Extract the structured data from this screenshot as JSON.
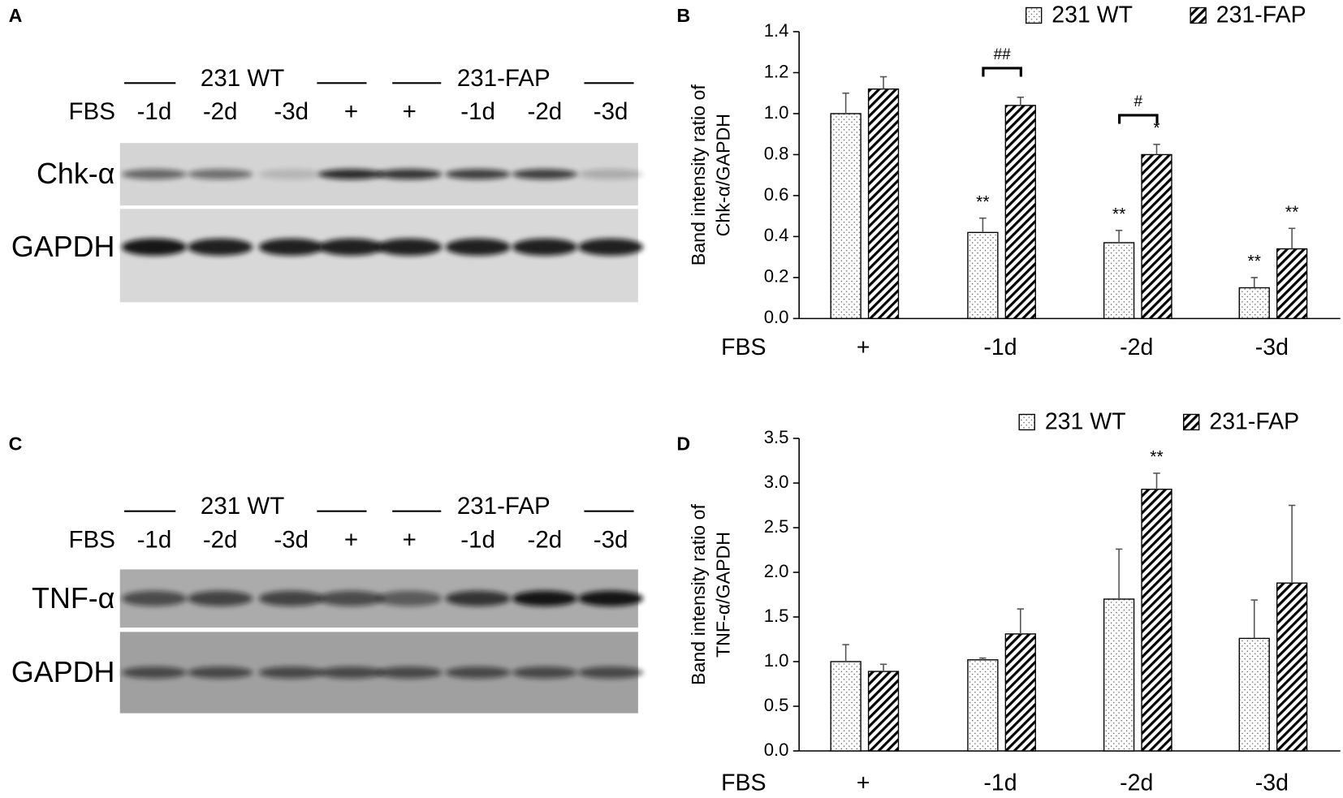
{
  "panels": [
    {
      "label": "A",
      "groups": [
        "231 WT",
        "231-FAP"
      ],
      "row_label": "FBS",
      "lanes": [
        "-1d",
        "-2d",
        "-3d",
        "+",
        "+",
        "-1d",
        "-2d",
        "-3d"
      ],
      "blots": [
        "Chk-α",
        "GAPDH"
      ]
    },
    {
      "label": "C",
      "groups": [
        "231 WT",
        "231-FAP"
      ],
      "row_label": "FBS",
      "lanes": [
        "-1d",
        "-2d",
        "-3d",
        "+",
        "+",
        "-1d",
        "-2d",
        "-3d"
      ],
      "blots": [
        "TNF-α",
        "GAPDH"
      ]
    }
  ],
  "chart_data": [
    {
      "type": "bar",
      "panel_label": "B",
      "y_label": [
        "Band intensity ratio of",
        "Chk-α/GAPDH"
      ],
      "x_label": "FBS",
      "categories": [
        "+",
        "-1d",
        "-2d",
        "-3d"
      ],
      "series": [
        {
          "name": "231 WT",
          "color": "#000000",
          "pattern": "dots",
          "values": [
            1.0,
            0.42,
            0.37,
            0.15
          ],
          "errors": [
            0.1,
            0.07,
            0.06,
            0.05
          ]
        },
        {
          "name": "231-FAP",
          "color": "#000000",
          "pattern": "hatch",
          "values": [
            1.12,
            1.04,
            0.8,
            0.34
          ],
          "errors": [
            0.06,
            0.04,
            0.05,
            0.1
          ]
        }
      ],
      "ylim": [
        0,
        1.4
      ],
      "yticks": [
        {
          "value": 0,
          "label": "0.0"
        },
        0.2,
        0.4,
        0.6,
        0.8,
        {
          "value": 1,
          "label": "1.0"
        },
        1.2,
        1.4
      ],
      "legend": "top-right",
      "annotations": [
        {
          "text": "**",
          "category": "-1d",
          "series": "231 WT"
        },
        {
          "text": "**",
          "category": "-2d",
          "series": "231 WT"
        },
        {
          "text": "*",
          "category": "-2d",
          "series": "231-FAP"
        },
        {
          "text": "**",
          "category": "-3d",
          "series": "231 WT"
        },
        {
          "text": "**",
          "category": "-3d",
          "series": "231-FAP"
        }
      ],
      "brackets": [
        {
          "text": "##",
          "category": "-1d"
        },
        {
          "text": "#",
          "category": "-2d"
        }
      ]
    },
    {
      "type": "bar",
      "panel_label": "D",
      "y_label": [
        "Band intensity ratio of",
        "TNF-α/GAPDH"
      ],
      "x_label": "FBS",
      "categories": [
        "+",
        "-1d",
        "-2d",
        "-3d"
      ],
      "series": [
        {
          "name": "231 WT",
          "color": "#000000",
          "pattern": "dots",
          "values": [
            1.0,
            1.02,
            1.7,
            1.26
          ],
          "errors": [
            0.19,
            0.02,
            0.56,
            0.43
          ]
        },
        {
          "name": "231-FAP",
          "color": "#000000",
          "pattern": "hatch",
          "values": [
            0.89,
            1.31,
            2.93,
            1.88
          ],
          "errors": [
            0.08,
            0.28,
            0.18,
            0.87
          ]
        }
      ],
      "ylim": [
        0,
        3.5
      ],
      "yticks": [
        {
          "value": 0,
          "label": "0.0"
        },
        0.5,
        {
          "value": 1,
          "label": "1.0"
        },
        1.5,
        {
          "value": 2,
          "label": "2.0"
        },
        2.5,
        {
          "value": 3,
          "label": "3.0"
        },
        3.5
      ],
      "legend": "top-right",
      "annotations": [
        {
          "text": "**",
          "category": "-2d",
          "series": "231-FAP"
        }
      ],
      "brackets": []
    }
  ]
}
